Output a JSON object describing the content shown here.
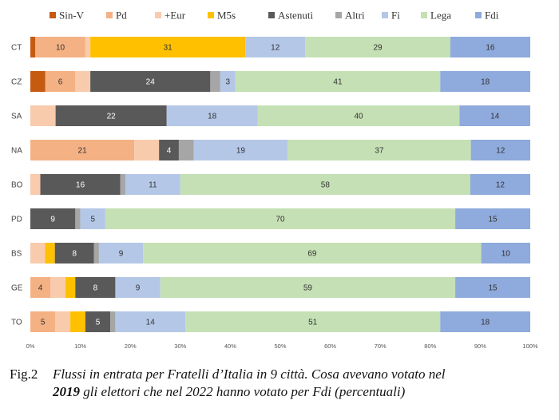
{
  "chart_data": {
    "type": "bar",
    "orientation": "horizontal",
    "stacked": true,
    "percent": true,
    "categories": [
      "CT",
      "CZ",
      "SA",
      "NA",
      "BO",
      "PD",
      "BS",
      "GE",
      "TO"
    ],
    "series": [
      {
        "name": "Sin-V",
        "color": "#c55a11",
        "text_color": "#ffffff",
        "values": [
          1,
          3,
          0,
          0,
          0,
          0,
          0,
          0,
          0
        ]
      },
      {
        "name": "Pd",
        "color": "#f4b183",
        "text_color": "#333333",
        "values": [
          10,
          6,
          0,
          21,
          0,
          0,
          0,
          4,
          5
        ]
      },
      {
        "name": "+Eur",
        "color": "#f8cbad",
        "text_color": "#333333",
        "values": [
          1,
          3,
          5,
          5,
          2,
          0,
          3,
          3,
          3
        ]
      },
      {
        "name": "M5s",
        "color": "#ffc000",
        "text_color": "#333333",
        "values": [
          31,
          0,
          0,
          0,
          0,
          0,
          2,
          2,
          3
        ]
      },
      {
        "name": "Astenuti",
        "color": "#595959",
        "text_color": "#ffffff",
        "values": [
          0,
          24,
          22,
          4,
          16,
          9,
          8,
          8,
          5
        ]
      },
      {
        "name": "Altri",
        "color": "#a6a6a6",
        "text_color": "#333333",
        "values": [
          0,
          2,
          0,
          3,
          1,
          1,
          1,
          0,
          1
        ]
      },
      {
        "name": "Fi",
        "color": "#b4c7e7",
        "text_color": "#333333",
        "values": [
          12,
          3,
          18,
          19,
          11,
          5,
          9,
          9,
          14
        ]
      },
      {
        "name": "Lega",
        "color": "#c5e0b4",
        "text_color": "#333333",
        "values": [
          29,
          41,
          40,
          37,
          58,
          70,
          69,
          59,
          51
        ]
      },
      {
        "name": "Fdi",
        "color": "#8faadc",
        "text_color": "#333333",
        "values": [
          16,
          18,
          14,
          12,
          12,
          15,
          10,
          15,
          18
        ]
      }
    ],
    "data_labels": [
      [
        "",
        "10",
        "",
        "31",
        "",
        "",
        "12",
        "29",
        "16"
      ],
      [
        "",
        "6",
        "",
        "",
        "24",
        "",
        "3",
        "41",
        "18"
      ],
      [
        "",
        "",
        "",
        "",
        "22",
        "",
        "18",
        "40",
        "14"
      ],
      [
        "",
        "21",
        "",
        "",
        "4",
        "",
        "19",
        "37",
        "12"
      ],
      [
        "",
        "",
        "",
        "",
        "16",
        "",
        "11",
        "58",
        "12"
      ],
      [
        "",
        "",
        "",
        "",
        "9",
        "",
        "5",
        "70",
        "15"
      ],
      [
        "",
        "",
        "",
        "",
        "8",
        "",
        "9",
        "69",
        "10"
      ],
      [
        "",
        "4",
        "",
        "",
        "8",
        "",
        "9",
        "59",
        "15"
      ],
      [
        "",
        "5",
        "",
        "",
        "5",
        "",
        "14",
        "51",
        "18"
      ]
    ],
    "x_ticks": [
      "0%",
      "10%",
      "20%",
      "30%",
      "40%",
      "50%",
      "60%",
      "70%",
      "80%",
      "90%",
      "100%"
    ],
    "xlim": [
      0,
      100
    ],
    "legend_position": "top",
    "grid": false
  },
  "caption": {
    "fig_label": "Fig.2",
    "line1": "Flussi in entrata per Fratelli d’Italia in 9 città. Cosa avevano votato nel",
    "bold_year": "2019",
    "line2_rest": " gli elettori che nel 2022 hanno votato per Fdi (percentuali)"
  }
}
